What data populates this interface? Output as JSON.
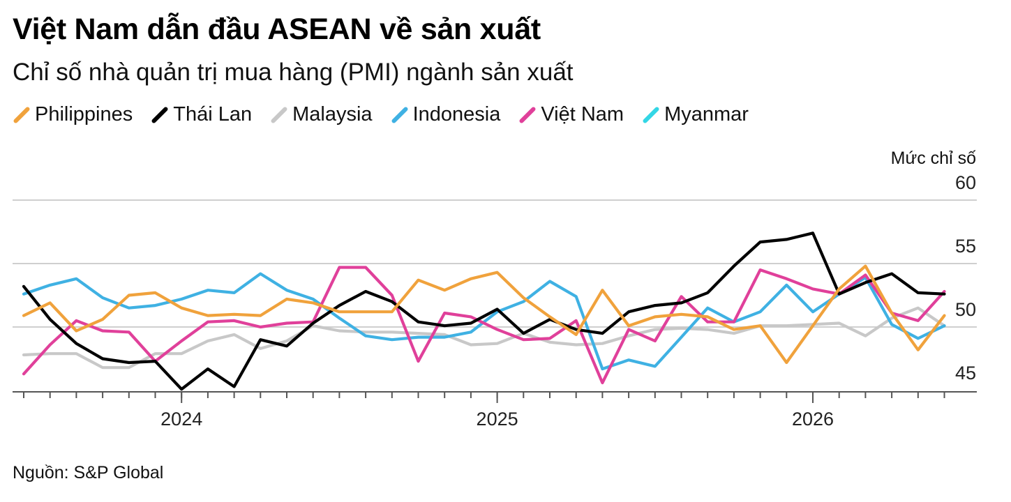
{
  "title": "Việt Nam dẫn đầu ASEAN về sản xuất",
  "subtitle": "Chỉ số nhà quản trị mua hàng (PMI) ngành sản xuất",
  "source": "Nguồn: S&P Global",
  "chart_data": {
    "type": "line",
    "ylabel": "Mức chỉ số",
    "ylim": [
      45,
      60
    ],
    "yticks": [
      45,
      50,
      55,
      60
    ],
    "x_start": "2023-07",
    "x_end": "2026-06",
    "xtick_labels": [
      {
        "label": "2024",
        "x": "2024-01"
      },
      {
        "label": "2025",
        "x": "2025-01"
      },
      {
        "label": "2026",
        "x": "2026-01"
      }
    ],
    "grid": true,
    "legend_position": "top",
    "series": [
      {
        "name": "Philippines",
        "color": "#f0a23c",
        "values": [
          50.9,
          51.9,
          49.7,
          50.6,
          52.5,
          52.7,
          51.5,
          50.9,
          51.0,
          50.9,
          52.2,
          51.9,
          51.2,
          51.2,
          51.2,
          53.7,
          52.9,
          53.8,
          54.3,
          52.3,
          50.8,
          49.4,
          52.9,
          50.1,
          50.8,
          51.0,
          50.8,
          49.8,
          50.1,
          47.2,
          50.1,
          53.0,
          54.8,
          51.1,
          48.2,
          50.9
        ]
      },
      {
        "name": "Thái Lan",
        "color": "#000000",
        "values": [
          53.2,
          50.6,
          48.7,
          47.5,
          47.2,
          47.3,
          45.1,
          46.7,
          45.3,
          49.0,
          48.5,
          50.3,
          51.7,
          52.8,
          52.0,
          50.4,
          50.1,
          50.3,
          51.4,
          49.5,
          50.6,
          49.8,
          49.5,
          51.2,
          51.7,
          51.9,
          52.7,
          54.8,
          56.7,
          56.9,
          57.4,
          52.6,
          53.5,
          54.2,
          52.7,
          52.6
        ]
      },
      {
        "name": "Malaysia",
        "color": "#c8c8c8",
        "values": [
          47.8,
          47.9,
          47.9,
          46.8,
          46.8,
          47.9,
          47.9,
          48.9,
          49.4,
          48.3,
          48.9,
          50.1,
          49.7,
          49.6,
          49.6,
          49.5,
          49.4,
          48.6,
          48.7,
          49.5,
          48.8,
          48.6,
          48.7,
          49.3,
          49.8,
          49.9,
          49.8,
          49.5,
          50.1,
          50.1,
          50.2,
          50.3,
          49.3,
          50.7,
          51.5,
          50.1
        ]
      },
      {
        "name": "Indonesia",
        "color": "#3fb1e3",
        "values": [
          52.6,
          53.3,
          53.8,
          52.3,
          51.5,
          51.7,
          52.2,
          52.9,
          52.7,
          54.2,
          52.9,
          52.2,
          50.7,
          49.3,
          49.0,
          49.2,
          49.2,
          49.6,
          51.2,
          52.0,
          53.6,
          52.4,
          46.7,
          47.4,
          46.9,
          49.2,
          51.5,
          50.4,
          51.2,
          53.3,
          51.2,
          52.6,
          53.9,
          50.2,
          49.1,
          50.1
        ]
      },
      {
        "name": "Việt Nam",
        "color": "#e0409a",
        "values": [
          46.3,
          48.6,
          50.5,
          49.7,
          49.6,
          47.3,
          48.9,
          50.4,
          50.5,
          50.0,
          50.3,
          50.4,
          54.7,
          54.7,
          52.5,
          47.3,
          51.1,
          50.8,
          49.8,
          49.0,
          49.1,
          50.5,
          45.6,
          49.8,
          48.9,
          52.4,
          50.4,
          50.4,
          54.5,
          53.8,
          53.0,
          52.6,
          54.1,
          51.1,
          50.5,
          52.8
        ]
      },
      {
        "name": "Myanmar",
        "color": "#33d6e5",
        "values": []
      }
    ]
  }
}
